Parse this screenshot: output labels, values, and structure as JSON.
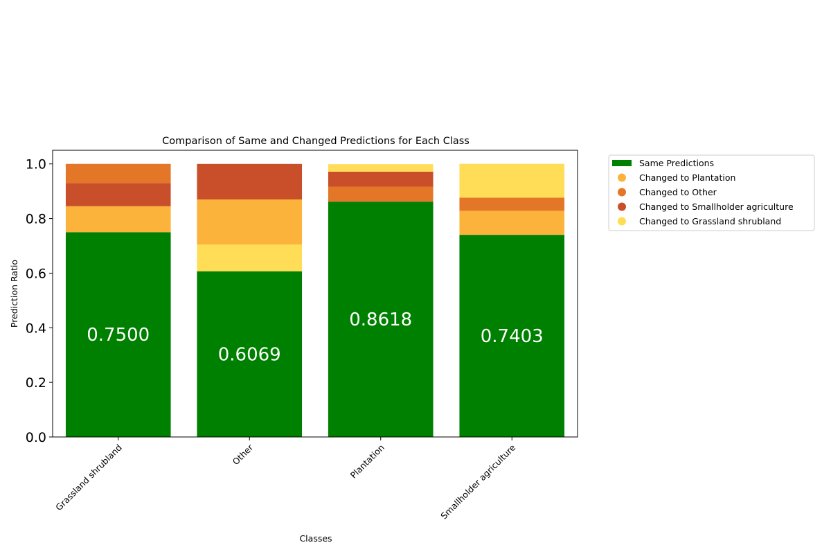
{
  "chart_data": {
    "type": "bar",
    "stacked": true,
    "title": "Comparison of Same and Changed Predictions for Each Class",
    "xlabel": "Classes",
    "ylabel": "Prediction Ratio",
    "ylim": [
      0,
      1.05
    ],
    "yticks": [
      "0.0",
      "0.2",
      "0.4",
      "0.6",
      "0.8",
      "1.0"
    ],
    "categories": [
      "Grassland shrubland",
      "Other",
      "Plantation",
      "Smallholder agriculture"
    ],
    "data_labels": [
      "0.7500",
      "0.6069",
      "0.8618",
      "0.7403"
    ],
    "legend_position": "outside-right",
    "grid": false,
    "series": [
      {
        "name": "Same Predictions",
        "color": "#008000",
        "marker": "rect",
        "values": [
          0.75,
          0.6069,
          0.8618,
          0.7403
        ]
      },
      {
        "name": "Changed to Plantation",
        "color": "#fbb33b",
        "marker": "circle",
        "values": [
          0.095,
          0.165,
          0,
          0.088
        ]
      },
      {
        "name": "Changed to Other",
        "color": "#e37627",
        "marker": "circle",
        "values": [
          0.07,
          0,
          0.055,
          0.048
        ]
      },
      {
        "name": "Changed to Smallholder agriculture",
        "color": "#c94f2b",
        "marker": "circle",
        "values": [
          0.085,
          0.13,
          0.055,
          0
        ]
      },
      {
        "name": "Changed to Grassland shrubland",
        "color": "#ffdd57",
        "marker": "circle",
        "values": [
          0,
          0.098,
          0.027,
          0.124
        ]
      }
    ],
    "stack_order": [
      [
        "Same Predictions",
        "Changed to Plantation",
        "Changed to Smallholder agriculture",
        "Changed to Other"
      ],
      [
        "Same Predictions",
        "Changed to Grassland shrubland",
        "Changed to Plantation",
        "Changed to Smallholder agriculture"
      ],
      [
        "Same Predictions",
        "Changed to Other",
        "Changed to Smallholder agriculture",
        "Changed to Grassland shrubland"
      ],
      [
        "Same Predictions",
        "Changed to Plantation",
        "Changed to Other",
        "Changed to Grassland shrubland"
      ]
    ]
  }
}
